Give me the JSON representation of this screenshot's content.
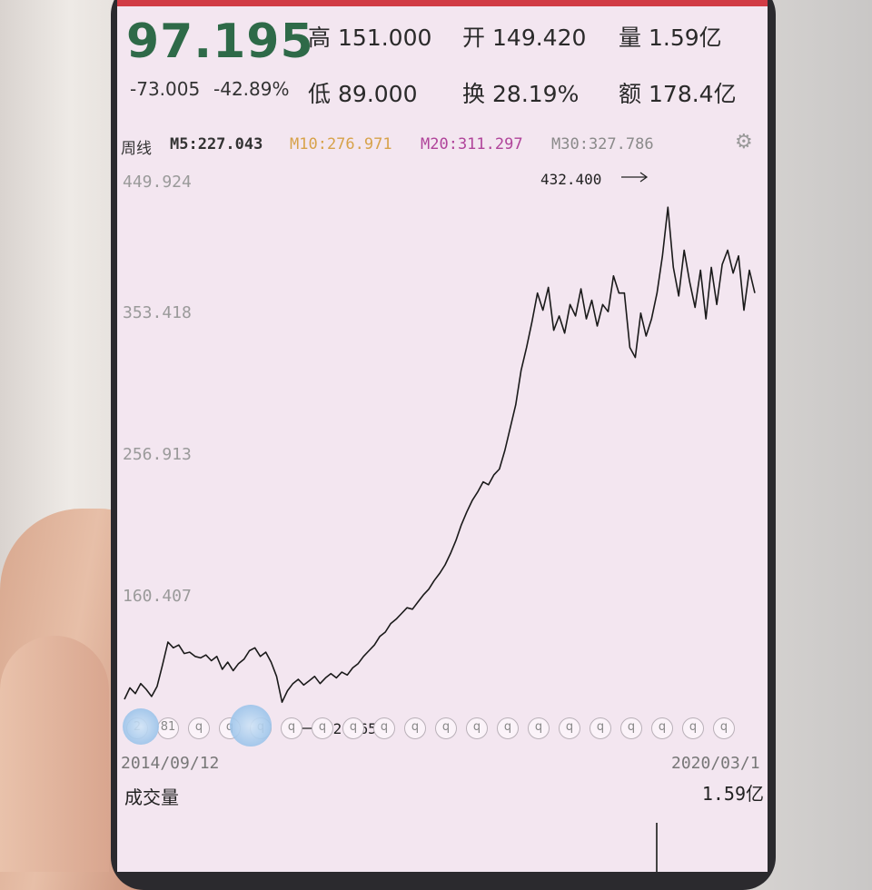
{
  "quote": {
    "price": "97.195",
    "change": "-73.005",
    "change_pct": "-42.89%",
    "high_label": "高",
    "high_value": "151.000",
    "open_label": "开",
    "open_value": "149.420",
    "volume_label": "量",
    "volume_value": "1.59亿",
    "low_label": "低",
    "low_value": "89.000",
    "turnover_label": "换",
    "turnover_value": "28.19%",
    "amount_label": "额",
    "amount_value": "178.4亿"
  },
  "ma": {
    "period_label": "周线",
    "m5": "M5:227.043",
    "m10": "M10:276.971",
    "m20": "M20:311.297",
    "m30": "M30:327.786",
    "colors": {
      "m5": "#333333",
      "m10": "#d7a24a",
      "m20": "#b0449a",
      "m30": "#8a8a8a"
    }
  },
  "axis": {
    "y_ticks": [
      "449.924",
      "353.418",
      "256.913",
      "160.407"
    ],
    "start_date": "2014/09/12",
    "end_date": "2020/03/1"
  },
  "annotations": {
    "high_mark": "432.400",
    "low_mark": "82.565"
  },
  "volume": {
    "title": "成交量",
    "value": "1.59亿"
  },
  "markers": {
    "label": "q",
    "first_label": "2",
    "second_label": "81"
  },
  "chart_data": {
    "type": "line",
    "x_range": [
      "2014/09/12",
      "2020/03/1"
    ],
    "ylim": [
      82.565,
      449.924
    ],
    "y_ticks": [
      449.924,
      353.418,
      256.913,
      160.407
    ],
    "values": [
      88,
      96,
      92,
      99,
      95,
      90,
      97,
      112,
      128,
      124,
      126,
      120,
      121,
      118,
      117,
      119,
      115,
      118,
      109,
      114,
      108,
      113,
      116,
      122,
      124,
      118,
      121,
      114,
      104,
      86,
      94,
      99,
      102,
      98,
      101,
      104,
      99,
      103,
      106,
      103,
      107,
      105,
      110,
      113,
      118,
      122,
      126,
      132,
      135,
      141,
      144,
      148,
      152,
      151,
      156,
      161,
      165,
      171,
      176,
      182,
      190,
      199,
      210,
      219,
      227,
      233,
      240,
      238,
      245,
      249,
      262,
      278,
      294,
      318,
      334,
      352,
      372,
      360,
      376,
      346,
      356,
      344,
      364,
      356,
      375,
      354,
      367,
      349,
      364,
      359,
      384,
      372,
      372,
      334,
      327,
      358,
      342,
      354,
      372,
      398,
      432,
      390,
      370,
      402,
      380,
      362,
      388,
      354,
      390,
      364,
      392,
      402,
      386,
      398,
      360,
      388,
      372
    ],
    "color": "#1a1a1a"
  }
}
